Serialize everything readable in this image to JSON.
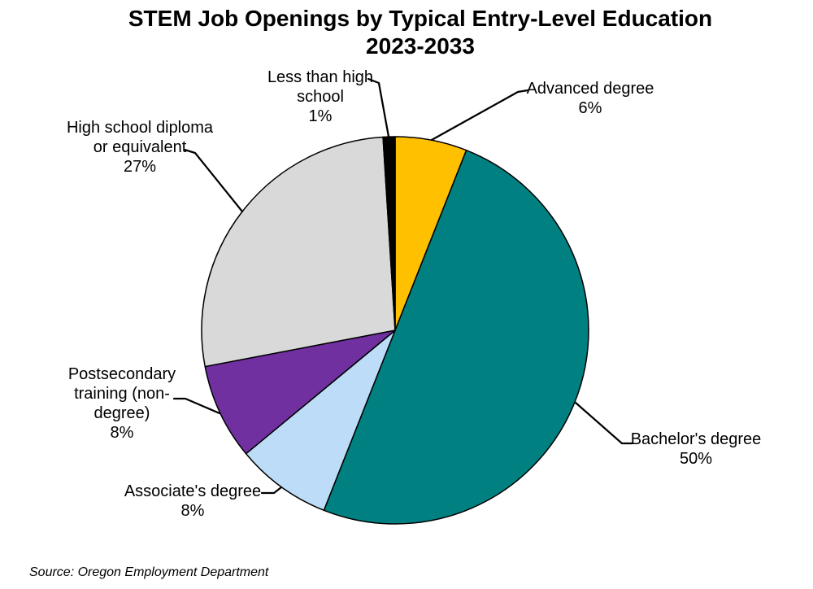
{
  "title": {
    "line1": "STEM Job Openings by Typical Entry-Level Education",
    "line2": "2023-2033"
  },
  "source_note": "Source: Oregon Employment Department",
  "chart_data": {
    "type": "pie",
    "title": "STEM Job Openings by Typical Entry-Level Education 2023-2033",
    "unit": "percent",
    "direction": "clockwise",
    "start_angle_deg": 0,
    "legend_position": "none",
    "grid": false,
    "categories": [
      "Advanced degree",
      "Bachelor's degree",
      "Associate's degree",
      "Postsecondary training (non-degree)",
      "High school diploma or equivalent",
      "Less than high school"
    ],
    "values": [
      6,
      50,
      8,
      8,
      27,
      1
    ],
    "colors": [
      "#FFC000",
      "#008080",
      "#BDDCF7",
      "#7030A0",
      "#D9D9D9",
      "#000000"
    ],
    "label_texts": [
      "Advanced degree\n6%",
      "Bachelor's degree\n50%",
      "Associate's degree\n8%",
      "Postsecondary\ntraining (non-\ndegree)\n8%",
      "High school diploma\nor equivalent\n27%",
      "Less than high\nschool\n1%"
    ],
    "source": "Source: Oregon Employment Department"
  }
}
